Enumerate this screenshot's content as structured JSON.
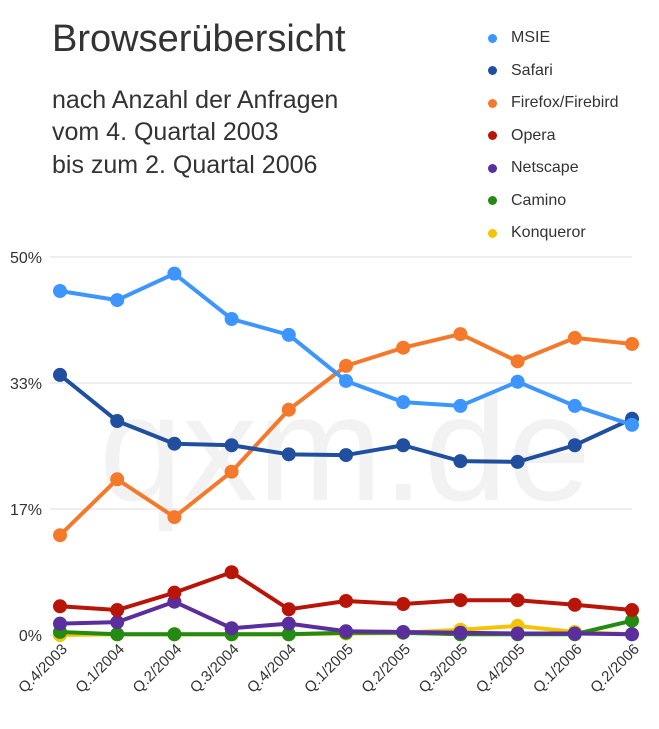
{
  "header": {
    "title": "Browserübersicht",
    "subtitle_lines": [
      "nach Anzahl der Anfragen",
      "vom 4. Quartal 2003",
      "bis zum 2. Quartal 2006"
    ]
  },
  "watermark": "qxm.de",
  "chart_data": {
    "type": "line",
    "title": "Browserübersicht",
    "xlabel": "",
    "ylabel": "",
    "ylim": [
      0,
      50
    ],
    "yticks": [
      0,
      16.67,
      33.33,
      50
    ],
    "ytick_labels": [
      "0%",
      "17%",
      "33%",
      "50%"
    ],
    "grid": true,
    "legend_position": "top-right",
    "categories": [
      "Q.4/2003",
      "Q.1/2004",
      "Q.2/2004",
      "Q.3/2004",
      "Q.4/2004",
      "Q.1/2005",
      "Q.2/2005",
      "Q.3/2005",
      "Q.4/2005",
      "Q.1/2006",
      "Q.2/2006"
    ],
    "series": [
      {
        "name": "MSIE",
        "color": "#3d95ff",
        "values": [
          45.5,
          44.3,
          47.8,
          41.8,
          39.7,
          33.6,
          30.8,
          30.3,
          33.5,
          30.3,
          27.8
        ]
      },
      {
        "name": "Safari",
        "color": "#1f4f9e",
        "values": [
          34.4,
          28.3,
          25.3,
          25.1,
          23.9,
          23.8,
          25.1,
          23.0,
          22.9,
          25.1,
          28.6
        ]
      },
      {
        "name": "Firefox/Firebird",
        "color": "#f5792a",
        "values": [
          13.2,
          20.6,
          15.6,
          21.6,
          29.8,
          35.6,
          38.0,
          39.8,
          36.2,
          39.3,
          38.5
        ]
      },
      {
        "name": "Opera",
        "color": "#b81408",
        "values": [
          3.8,
          3.3,
          5.6,
          8.3,
          3.4,
          4.5,
          4.1,
          4.6,
          4.6,
          4.0,
          3.3
        ]
      },
      {
        "name": "Netscape",
        "color": "#5a2e9c",
        "values": [
          1.5,
          1.7,
          4.4,
          0.9,
          1.5,
          0.5,
          0.4,
          0.3,
          0.2,
          0.2,
          0.1
        ]
      },
      {
        "name": "Camino",
        "color": "#238a12",
        "values": [
          0.4,
          0.1,
          0.1,
          0.1,
          0.1,
          0.3,
          0.3,
          0.1,
          0.1,
          0.1,
          1.9
        ]
      },
      {
        "name": "Konqueror",
        "color": "#f5c400",
        "values": [
          0.0,
          0.1,
          0.1,
          0.1,
          0.1,
          0.2,
          0.3,
          0.7,
          1.2,
          0.4,
          0.1
        ]
      }
    ]
  }
}
